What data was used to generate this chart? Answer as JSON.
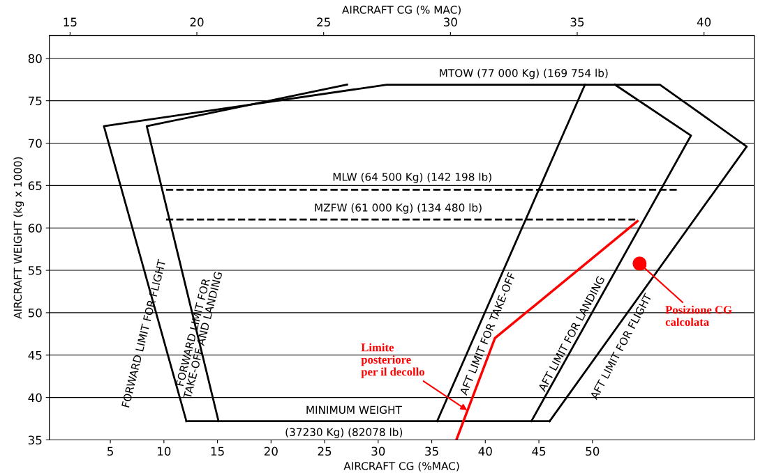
{
  "chart_data": {
    "type": "line",
    "xlabel": "AIRCRAFT CG (%MAC)",
    "x2label": "AIRCRAFT CG (% MAC)",
    "ylabel": "AIRCRAFT WEIGHT (kg x 1000)",
    "xlim": [
      -0.7,
      65.1
    ],
    "xticks": [
      5,
      10,
      15,
      20,
      25,
      30,
      35,
      40,
      45,
      50
    ],
    "x2lim": [
      14.18,
      41.98
    ],
    "x2ticks": [
      15,
      20,
      25,
      30,
      35,
      40
    ],
    "ylim": [
      35,
      82.7
    ],
    "yticks": [
      35,
      40,
      45,
      50,
      55,
      60,
      65,
      70,
      75,
      80
    ],
    "grid": "y",
    "marker": "none",
    "series": [
      {
        "color": "#000000",
        "x": [
          12.1,
          4.4,
          30.8,
          56.3,
          64.4,
          46.0
        ],
        "values": [
          37.2,
          72.0,
          76.9,
          76.9,
          69.6,
          37.2
        ]
      },
      {
        "color": "#000000",
        "x": [
          15.1,
          8.4,
          27.1
        ],
        "values": [
          37.2,
          72.0,
          76.9
        ]
      },
      {
        "color": "#000000",
        "x": [
          52.1,
          59.2,
          44.3
        ],
        "values": [
          76.9,
          70.9,
          37.2
        ]
      },
      {
        "color": "#000000",
        "x": [
          35.5,
          49.3
        ],
        "values": [
          37.2,
          76.9
        ]
      },
      {
        "color": "#000000",
        "x": [
          12.1,
          46.0
        ],
        "values": [
          37.2,
          37.2
        ]
      },
      {
        "color": "#000000",
        "line_style": "dashed",
        "x": [
          10.2,
          57.9
        ],
        "values": [
          64.5,
          64.5
        ]
      },
      {
        "color": "#000000",
        "line_style": "dashed",
        "x": [
          10.2,
          54.0
        ],
        "values": [
          61,
          61
        ]
      },
      {
        "color": "#ff0000",
        "x": [
          37.3,
          40.9,
          54.2
        ],
        "values": [
          35,
          47.0,
          60.8
        ]
      },
      {
        "type": "scatter",
        "color": "#ff0000",
        "marker": "circle",
        "x": [
          54.4
        ],
        "values": [
          55.8
        ]
      }
    ],
    "annotations": [
      "MTOW (77 000 Kg) (169 754 lb)",
      "MLW (64 500 Kg) (142 198 lb)",
      "MZFW (61 000 Kg) (134 480 lb)",
      "MINIMUM WEIGHT",
      "(37230 Kg) (82078 lb)",
      "FORWARD LIMIT FOR FLIGHT",
      "FORWARD LIMIT FOR\nTAKE-OFF AND LANDING",
      "AFT LIMIT FOR TAKE-OFF",
      "AFT LIMIT FOR LANDING",
      "AFT LIMIT FOR FLIGHT",
      {
        "text": "Limite\nposteriore\nper il decollo",
        "x": 38.3,
        "y": 38.5
      },
      {
        "text": "Posizione CG\ncalcolata",
        "x": 54.4,
        "y": 55.8
      }
    ]
  }
}
